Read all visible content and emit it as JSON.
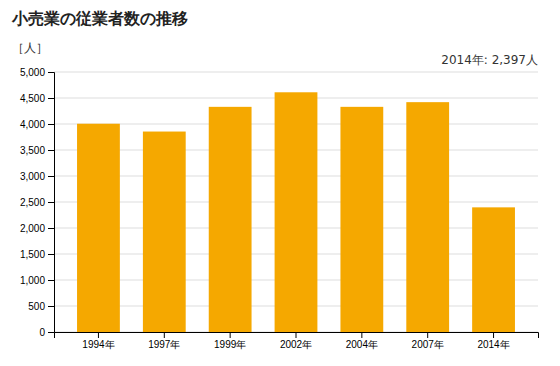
{
  "chart_data": {
    "type": "bar",
    "title": "小売業の従業者数の推移",
    "y_label": "［人］",
    "annotation": "2014年: 2,397人",
    "categories": [
      "1994年",
      "1997年",
      "1999年",
      "2002年",
      "2004年",
      "2007年",
      "2014年"
    ],
    "values": [
      4005,
      3855,
      4330,
      4610,
      4330,
      4420,
      2397
    ],
    "color": "#F5A800",
    "ylim": [
      0,
      5000
    ],
    "yticks": [
      0,
      500,
      {
        "value": 1000,
        "label": "1,000"
      },
      {
        "value": 1500,
        "label": "1,500"
      },
      {
        "value": 2000,
        "label": "2,000"
      },
      {
        "value": 2500,
        "label": "2,500"
      },
      {
        "value": 3000,
        "label": "3,000"
      },
      {
        "value": 3500,
        "label": "3,500"
      },
      {
        "value": 4000,
        "label": "4,000"
      },
      {
        "value": 4500,
        "label": "4,500"
      },
      {
        "value": 5000,
        "label": "5,000"
      }
    ],
    "grid": true
  }
}
